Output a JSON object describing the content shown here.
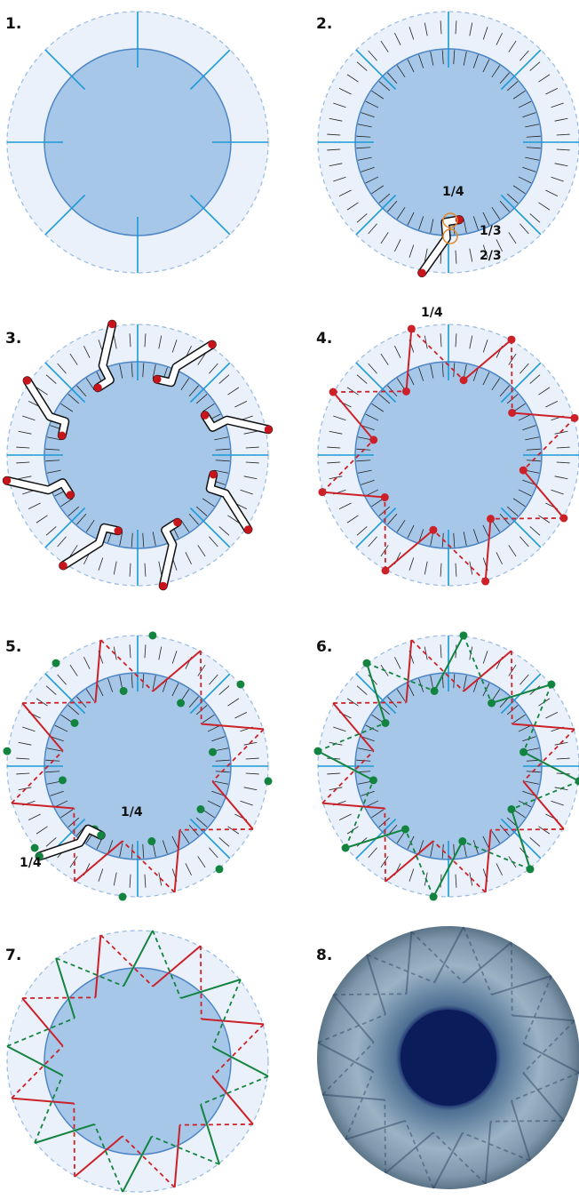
{
  "panels": [
    {
      "label": "1."
    },
    {
      "label": "2.",
      "annotations": [
        "1/4",
        "1/3",
        "2/3",
        "1/4"
      ]
    },
    {
      "label": "3."
    },
    {
      "label": "4."
    },
    {
      "label": "5.",
      "annotations": [
        "1/4",
        "1/4"
      ]
    },
    {
      "label": "6."
    },
    {
      "label": "7."
    },
    {
      "label": "8."
    }
  ]
}
